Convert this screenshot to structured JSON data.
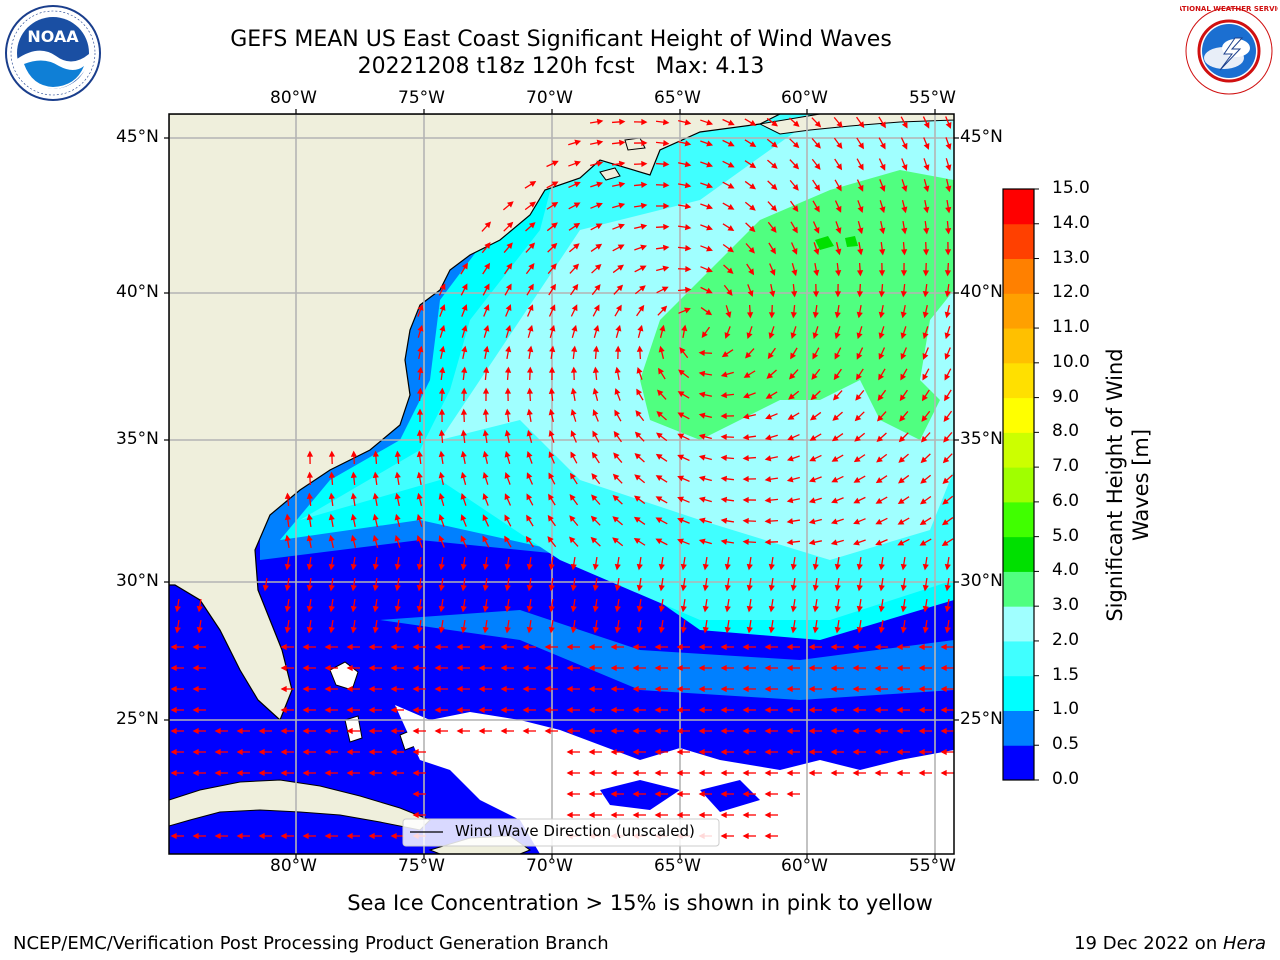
{
  "title": {
    "line1": "GEFS MEAN US East Coast Significant Height of Wind Waves",
    "line2": "20221208 t18z 120h fcst   Max: 4.13"
  },
  "logos": {
    "left": {
      "name": "NOAA",
      "icon": "noaa-logo"
    },
    "right": {
      "name": "NATIONAL WEATHER SERVICE",
      "icon": "nws-logo"
    }
  },
  "map": {
    "lon_labels": [
      "80°W",
      "75°W",
      "70°W",
      "65°W",
      "60°W",
      "55°W"
    ],
    "lat_labels": [
      "45°N",
      "40°N",
      "35°N",
      "30°N",
      "25°N"
    ],
    "legend_label": "Wind Wave Direction (unscaled)",
    "colors": {
      "land": "#efefdc",
      "grid": "#b4b4b4",
      "arrow": "#ff0000",
      "mask": "#ffffff"
    }
  },
  "colorbar": {
    "label_line1": "Significant Height of Wind",
    "label_line2": "Waves [m]",
    "ticks": [
      "0.0",
      "0.5",
      "1.0",
      "1.5",
      "2.0",
      "3.0",
      "4.0",
      "5.0",
      "6.0",
      "7.0",
      "8.0",
      "9.0",
      "10.0",
      "11.0",
      "12.0",
      "13.0",
      "14.0",
      "15.0"
    ],
    "colors": [
      "#0000ff",
      "#0080ff",
      "#00ffff",
      "#40ffff",
      "#a0ffff",
      "#50ff80",
      "#00e000",
      "#40ff00",
      "#a0ff00",
      "#ccff00",
      "#ffff00",
      "#ffe000",
      "#ffc000",
      "#ffa000",
      "#ff8000",
      "#ff4000",
      "#ff0000"
    ]
  },
  "footer": {
    "note": "Sea Ice Concentration > 15% is shown in pink to yellow",
    "left": "NCEP/EMC/Verification Post Processing Product Generation Branch",
    "right_prefix": "19 Dec 2022 on ",
    "right_italic": "Hera"
  }
}
